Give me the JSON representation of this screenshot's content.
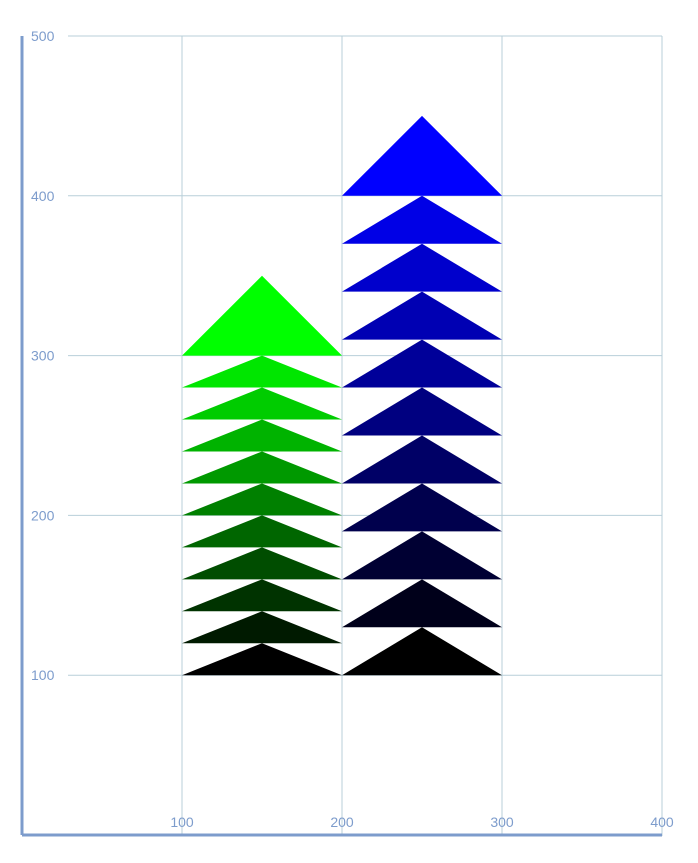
{
  "chart_data": {
    "type": "area",
    "title": "",
    "xlabel": "",
    "ylabel": "",
    "xlim": [
      0,
      400
    ],
    "ylim": [
      0,
      500
    ],
    "x_ticks": [
      "100",
      "200",
      "300",
      "400"
    ],
    "y_ticks": [
      "100",
      "200",
      "300",
      "400",
      "500"
    ],
    "grid": true,
    "legend": "none",
    "series": [
      {
        "color_top": "#00ff00",
        "color_bottom": "#000000",
        "x_range": [
          100,
          200
        ],
        "tiers": [
          {
            "base": 100,
            "apex": 120
          },
          {
            "base": 120,
            "apex": 140
          },
          {
            "base": 140,
            "apex": 160
          },
          {
            "base": 160,
            "apex": 180
          },
          {
            "base": 180,
            "apex": 200
          },
          {
            "base": 200,
            "apex": 220
          },
          {
            "base": 220,
            "apex": 240
          },
          {
            "base": 240,
            "apex": 260
          },
          {
            "base": 260,
            "apex": 280
          },
          {
            "base": 280,
            "apex": 300
          },
          {
            "base": 300,
            "apex": 350
          }
        ]
      },
      {
        "color_top": "#0000ff",
        "color_bottom": "#000000",
        "x_range": [
          200,
          300
        ],
        "tiers": [
          {
            "base": 100,
            "apex": 130
          },
          {
            "base": 130,
            "apex": 160
          },
          {
            "base": 160,
            "apex": 190
          },
          {
            "base": 190,
            "apex": 220
          },
          {
            "base": 220,
            "apex": 250
          },
          {
            "base": 250,
            "apex": 280
          },
          {
            "base": 280,
            "apex": 310
          },
          {
            "base": 310,
            "apex": 340
          },
          {
            "base": 340,
            "apex": 370
          },
          {
            "base": 370,
            "apex": 400
          },
          {
            "base": 400,
            "apex": 450
          }
        ]
      }
    ]
  }
}
